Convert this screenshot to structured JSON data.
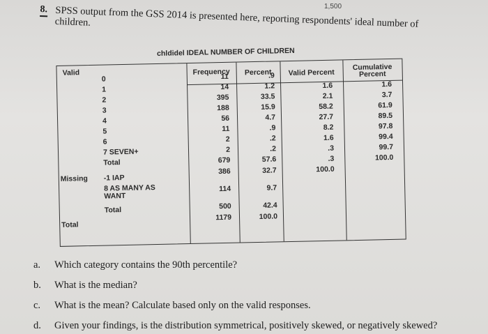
{
  "page_number": "1,500",
  "question": {
    "number": "8.",
    "line1": "SPSS output from the GSS 2014 is presented here, reporting respondents' ideal number of",
    "line2": "children."
  },
  "table": {
    "var_name": "chldidel",
    "title": "IDEAL NUMBER OF CHILDREN",
    "headers": {
      "frequency": "Frequency",
      "percent": "Percent",
      "valid_percent": "Valid Percent",
      "cumulative_percent": "Cumulative Percent"
    },
    "groups": {
      "valid": "Valid",
      "missing": "Missing",
      "total": "Total"
    },
    "valid_rows": [
      {
        "label": "0",
        "frequency": "11",
        "percent": ".9",
        "valid_percent": "1.6",
        "cumulative": "1.6"
      },
      {
        "label": "1",
        "frequency": "14",
        "percent": "1.2",
        "valid_percent": "2.1",
        "cumulative": "3.7"
      },
      {
        "label": "2",
        "frequency": "395",
        "percent": "33.5",
        "valid_percent": "58.2",
        "cumulative": "61.9"
      },
      {
        "label": "3",
        "frequency": "188",
        "percent": "15.9",
        "valid_percent": "27.7",
        "cumulative": "89.5"
      },
      {
        "label": "4",
        "frequency": "56",
        "percent": "4.7",
        "valid_percent": "8.2",
        "cumulative": "97.8"
      },
      {
        "label": "5",
        "frequency": "11",
        "percent": ".9",
        "valid_percent": "1.6",
        "cumulative": "99.4"
      },
      {
        "label": "6",
        "frequency": "2",
        "percent": ".2",
        "valid_percent": ".3",
        "cumulative": "99.7"
      },
      {
        "label": "7 SEVEN+",
        "frequency": "2",
        "percent": ".2",
        "valid_percent": ".3",
        "cumulative": "100.0"
      },
      {
        "label": "Total",
        "frequency": "679",
        "percent": "57.6",
        "valid_percent": "100.0",
        "cumulative": ""
      }
    ],
    "missing_rows": [
      {
        "label": "-1 IAP",
        "frequency": "386",
        "percent": "32.7"
      },
      {
        "label": "8 AS MANY AS WANT",
        "frequency": "114",
        "percent": "9.7"
      },
      {
        "label": "Total",
        "frequency": "500",
        "percent": "42.4"
      }
    ],
    "grand_total": {
      "frequency": "1179",
      "percent": "100.0"
    }
  },
  "sub_questions": [
    {
      "letter": "a.",
      "text": "Which category contains the 90th percentile?"
    },
    {
      "letter": "b.",
      "text": "What is the median?"
    },
    {
      "letter": "c.",
      "text": "What is the mean? Calculate based only on the valid responses."
    },
    {
      "letter": "d.",
      "text": "Given your findings, is the distribution symmetrical, positively skewed, or negatively skewed?"
    }
  ]
}
